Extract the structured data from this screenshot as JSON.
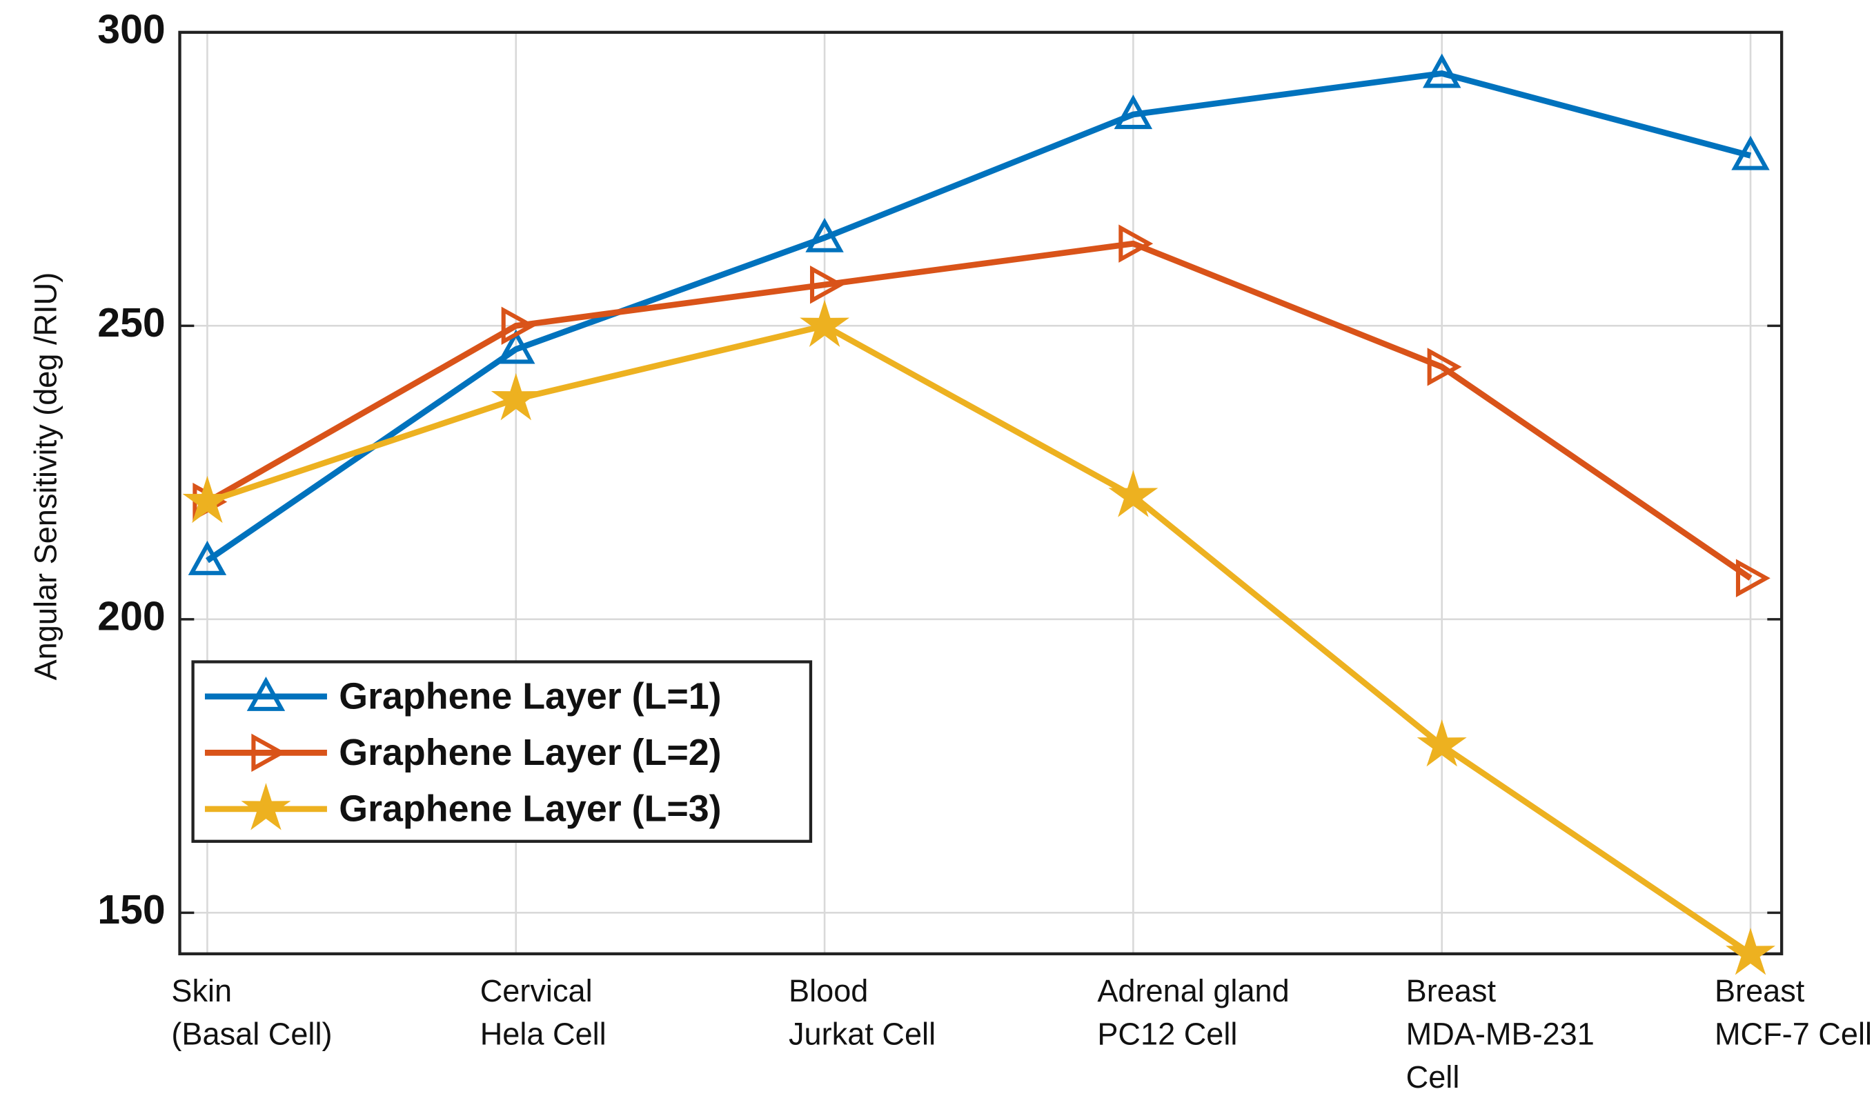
{
  "chart_data": {
    "type": "line",
    "y_label": "Angular Sensitivity (deg /RIU)",
    "categories": [
      [
        "Skin",
        "(Basal Cell)"
      ],
      [
        "Cervical",
        "Hela Cell"
      ],
      [
        "Blood",
        "Jurkat Cell"
      ],
      [
        "Adrenal gland",
        "PC12 Cell"
      ],
      [
        "Breast",
        "MDA-MB-231",
        "Cell"
      ],
      [
        "Breast",
        "MCF-7 Cell"
      ]
    ],
    "series": [
      {
        "name": "Graphene Layer (L=1)",
        "color": "#0072BD",
        "marker": "triangle-up",
        "values": [
          210,
          246,
          265,
          286,
          293,
          279
        ]
      },
      {
        "name": "Graphene Layer (L=2)",
        "color": "#D95319",
        "marker": "triangle-right",
        "values": [
          220,
          250,
          257,
          264,
          243,
          207
        ]
      },
      {
        "name": "Graphene Layer (L=3)",
        "color": "#EDB120",
        "marker": "star",
        "values": [
          220,
          237.5,
          250,
          221,
          178.5,
          143
        ]
      }
    ],
    "ylim": [
      143,
      300
    ],
    "yticks": [
      150,
      200,
      250,
      300
    ],
    "grid": true,
    "legend": "lower left"
  }
}
